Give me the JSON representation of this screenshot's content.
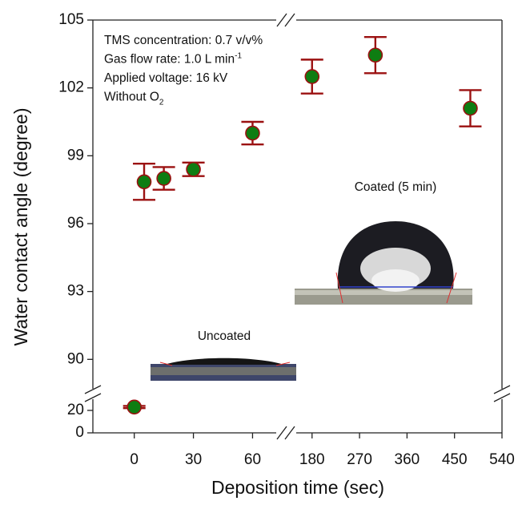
{
  "chart_data": {
    "type": "scatter",
    "x_label": "Deposition time (sec)",
    "y_label": "Water contact angle (degree)",
    "x_segments": [
      {
        "xlim": [
          -21,
          72
        ],
        "xticks": [
          0,
          30,
          60
        ]
      },
      {
        "xlim": [
          150,
          540
        ],
        "xticks": [
          180,
          270,
          360,
          450,
          540
        ]
      }
    ],
    "y_segments": [
      {
        "ylim": [
          0,
          30
        ],
        "yticks": [
          0,
          20
        ]
      },
      {
        "ylim": [
          88.7,
          105
        ],
        "yticks": [
          90,
          93,
          96,
          99,
          102,
          105
        ]
      }
    ],
    "annotations": [
      {
        "text": "TMS concentration: 0.7 v/v%"
      },
      {
        "text": "Gas flow rate: 1.0 L min",
        "sup": "-1"
      },
      {
        "text": "Applied voltage: 16 kV"
      },
      {
        "text": "Without O",
        "sub": "2"
      }
    ],
    "inset_labels": [
      "Coated (5 min)",
      "Uncoated"
    ],
    "series": [
      {
        "color": "#0e7d12",
        "error_color": "#9b1111",
        "x": [
          0,
          5,
          15,
          30,
          60,
          180,
          300,
          480
        ],
        "values": [
          23,
          97.85,
          98.0,
          98.4,
          100.0,
          102.5,
          103.45,
          101.1
        ],
        "errors": [
          1,
          0.8,
          0.5,
          0.3,
          0.5,
          0.75,
          0.8,
          0.8
        ]
      }
    ]
  }
}
